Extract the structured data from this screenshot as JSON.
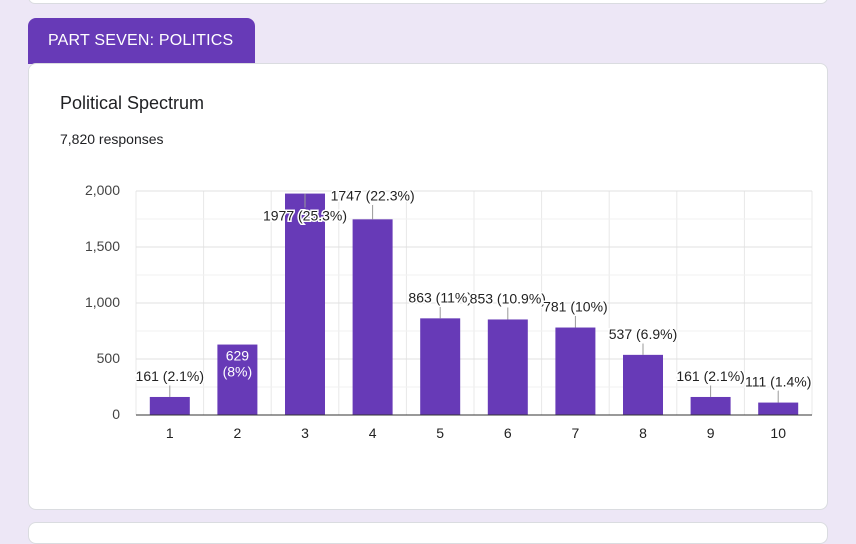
{
  "section": {
    "label": "PART SEVEN: POLITICS"
  },
  "question": {
    "title": "Political Spectrum",
    "responses": "7,820 responses"
  },
  "colors": {
    "bar": "#673ab7",
    "background": "#ede7f6"
  },
  "chart_data": {
    "type": "bar",
    "categories": [
      "1",
      "2",
      "3",
      "4",
      "5",
      "6",
      "7",
      "8",
      "9",
      "10"
    ],
    "values": [
      161,
      629,
      1977,
      1747,
      863,
      853,
      781,
      537,
      161,
      111
    ],
    "data_labels": [
      "161 (2.1%)",
      "629 (8%)",
      "1977 (25.3%)",
      "1747 (22.3%)",
      "863 (11%)",
      "853 (10.9%)",
      "781 (10%)",
      "537 (6.9%)",
      "161 (2.1%)",
      "111 (1.4%)"
    ],
    "yticks": [
      "0",
      "500",
      "1,000",
      "1,500",
      "2,000"
    ],
    "ylim": [
      0,
      2000
    ],
    "grid": true
  }
}
